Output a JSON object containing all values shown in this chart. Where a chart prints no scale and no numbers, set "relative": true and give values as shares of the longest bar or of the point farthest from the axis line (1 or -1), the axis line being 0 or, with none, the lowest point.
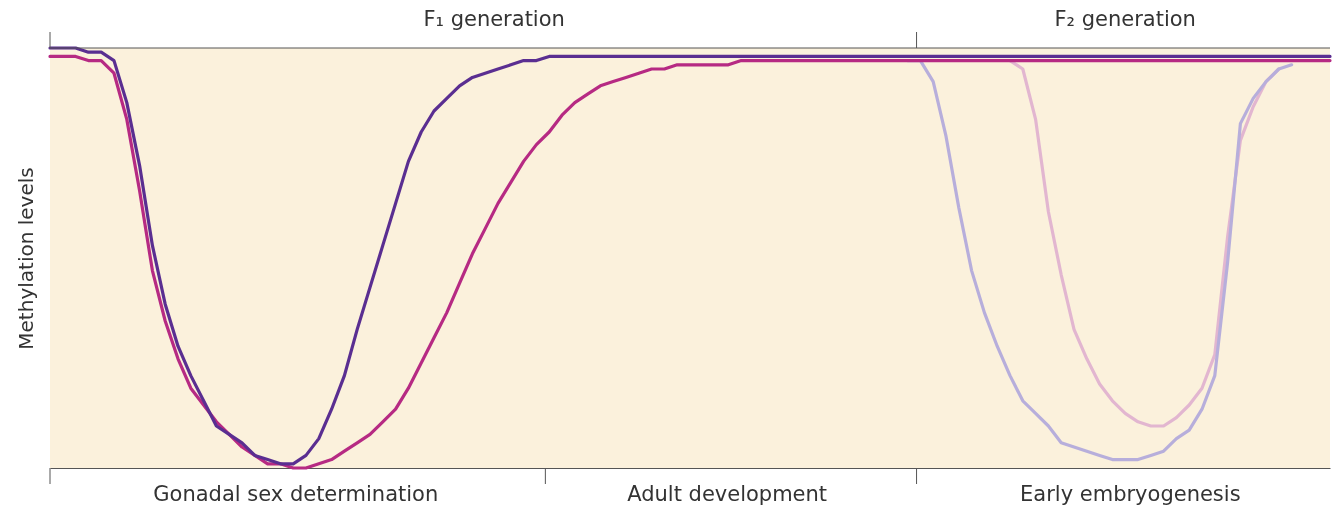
{
  "chart_data": {
    "type": "line",
    "relative": true,
    "ylabel": "Methylation levels",
    "line_style": "solid",
    "categories": [
      null,
      null,
      null,
      null,
      null,
      null,
      null,
      null,
      null,
      null,
      null,
      null,
      null,
      null,
      null,
      null,
      null,
      null,
      null,
      null,
      null,
      null,
      null,
      null,
      null,
      null,
      null,
      null,
      null,
      null,
      null,
      null,
      null,
      null,
      null,
      null,
      null,
      null,
      null,
      null,
      null,
      null,
      null,
      null,
      null,
      null,
      null,
      null,
      null,
      null,
      null,
      null,
      null,
      null,
      null,
      null,
      null,
      null,
      null,
      null,
      null,
      null,
      null,
      null,
      null,
      null,
      null,
      null,
      null,
      null,
      null,
      null,
      null,
      null,
      null,
      null,
      null,
      null,
      null,
      null,
      null,
      null,
      null,
      null,
      null,
      null,
      null,
      null,
      null,
      null,
      null,
      null,
      null,
      null,
      null,
      null,
      null,
      null,
      null,
      null,
      null
    ],
    "series": [
      {
        "color": "#5a2e91",
        "values": [
          1.0,
          1.0,
          1.0,
          0.99,
          0.99,
          0.97,
          0.87,
          0.72,
          0.53,
          0.39,
          0.29,
          0.22,
          0.16,
          0.1,
          0.08,
          0.06,
          0.03,
          0.02,
          0.01,
          0.01,
          0.03,
          0.07,
          0.14,
          0.22,
          0.33,
          0.43,
          0.53,
          0.63,
          0.73,
          0.8,
          0.85,
          0.88,
          0.91,
          0.93,
          0.94,
          0.95,
          0.96,
          0.97,
          0.97,
          0.98,
          0.98,
          0.98,
          0.98,
          0.98,
          0.98,
          0.98,
          0.98,
          0.98,
          0.98,
          0.98,
          0.98,
          0.98,
          0.98,
          0.98,
          0.98,
          0.98,
          0.98,
          0.98,
          0.98,
          0.98,
          0.98,
          0.98,
          0.98,
          0.98,
          0.98,
          0.98,
          0.98,
          0.98,
          0.98,
          0.98,
          0.98,
          0.98,
          0.98,
          0.98,
          0.98,
          0.98,
          0.98,
          0.98,
          0.98,
          0.98,
          0.98,
          0.98,
          0.98,
          0.98,
          0.98,
          0.98,
          0.98,
          0.98,
          0.98,
          0.98,
          0.98,
          0.98,
          0.98,
          0.98,
          0.98,
          0.98,
          0.98,
          0.98,
          0.98,
          0.98,
          0.98
        ]
      },
      {
        "color": "#b62a83",
        "values": [
          0.98,
          0.98,
          0.98,
          0.97,
          0.97,
          0.94,
          0.83,
          0.66,
          0.47,
          0.35,
          0.26,
          0.19,
          0.15,
          0.11,
          0.08,
          0.05,
          0.03,
          0.01,
          0.01,
          0.0,
          0.0,
          0.01,
          0.02,
          0.04,
          0.06,
          0.08,
          0.11,
          0.14,
          0.19,
          0.25,
          0.31,
          0.37,
          0.44,
          0.51,
          0.57,
          0.63,
          0.68,
          0.73,
          0.77,
          0.8,
          0.84,
          0.87,
          0.89,
          0.91,
          0.92,
          0.93,
          0.94,
          0.95,
          0.95,
          0.96,
          0.96,
          0.96,
          0.96,
          0.96,
          0.97,
          0.97,
          0.97,
          0.97,
          0.97,
          0.97,
          0.97,
          0.97,
          0.97,
          0.97,
          0.97,
          0.97,
          0.97,
          0.97,
          0.97,
          0.97,
          0.97,
          0.97,
          0.97,
          0.97,
          0.97,
          0.97,
          0.97,
          0.97,
          0.97,
          0.97,
          0.97,
          0.97,
          0.97,
          0.97,
          0.97,
          0.97,
          0.97,
          0.97,
          0.97,
          0.97,
          0.97,
          0.97,
          0.97,
          0.97,
          0.97,
          0.97,
          0.97,
          0.97,
          0.97,
          0.97,
          0.97
        ]
      },
      {
        "color": "#b7aedb",
        "values": [
          null,
          null,
          null,
          null,
          null,
          null,
          null,
          null,
          null,
          null,
          null,
          null,
          null,
          null,
          null,
          null,
          null,
          null,
          null,
          null,
          null,
          null,
          null,
          null,
          null,
          null,
          null,
          null,
          null,
          null,
          null,
          null,
          null,
          null,
          null,
          null,
          null,
          null,
          null,
          null,
          null,
          null,
          null,
          null,
          null,
          null,
          null,
          null,
          null,
          null,
          null,
          null,
          null,
          null,
          null,
          null,
          null,
          null,
          null,
          null,
          null,
          null,
          null,
          null,
          null,
          null,
          null,
          0.97,
          0.97,
          0.92,
          0.79,
          0.62,
          0.47,
          0.37,
          0.29,
          0.22,
          0.16,
          0.13,
          0.1,
          0.06,
          0.05,
          0.04,
          0.03,
          0.02,
          0.02,
          0.02,
          0.03,
          0.04,
          0.07,
          0.09,
          0.14,
          0.22,
          0.49,
          0.82,
          0.88,
          0.92,
          0.95,
          0.96,
          null,
          null,
          null
        ]
      },
      {
        "color": "#e2b6d0",
        "values": [
          null,
          null,
          null,
          null,
          null,
          null,
          null,
          null,
          null,
          null,
          null,
          null,
          null,
          null,
          null,
          null,
          null,
          null,
          null,
          null,
          null,
          null,
          null,
          null,
          null,
          null,
          null,
          null,
          null,
          null,
          null,
          null,
          null,
          null,
          null,
          null,
          null,
          null,
          null,
          null,
          null,
          null,
          null,
          null,
          null,
          null,
          null,
          null,
          null,
          null,
          null,
          null,
          null,
          null,
          null,
          null,
          null,
          null,
          null,
          null,
          null,
          null,
          null,
          null,
          null,
          null,
          null,
          null,
          null,
          null,
          null,
          null,
          null,
          null,
          null,
          0.97,
          0.95,
          0.83,
          0.61,
          0.46,
          0.33,
          0.26,
          0.2,
          0.16,
          0.13,
          0.11,
          0.1,
          0.1,
          0.12,
          0.15,
          0.19,
          0.27,
          0.55,
          0.78,
          0.86,
          0.92,
          0.95,
          null,
          null,
          null,
          null
        ]
      }
    ],
    "annotations": [
      "F₁ generation",
      "F₂ generation",
      "Gonadal sex determination",
      "Adult development",
      "Early embryogenesis"
    ]
  }
}
